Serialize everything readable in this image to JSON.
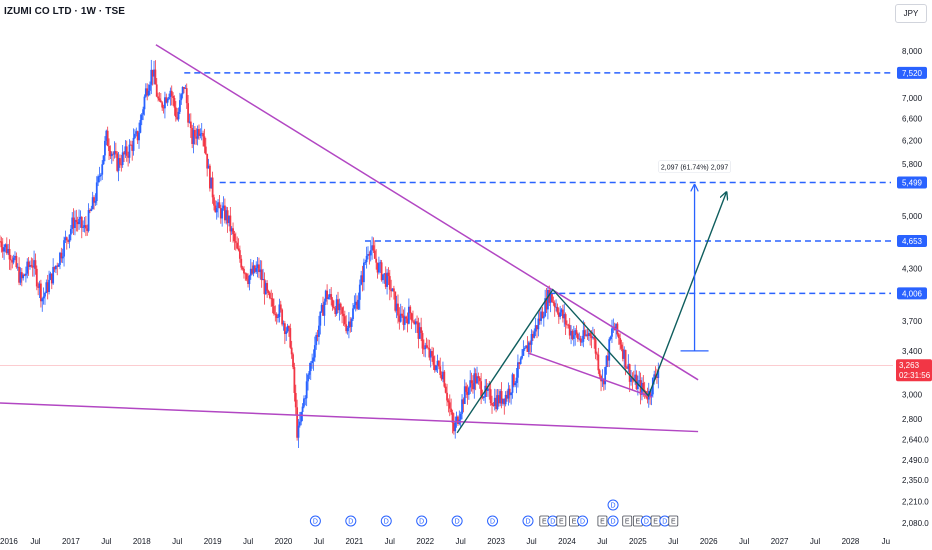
{
  "header": {
    "title": "IZUMI CO LTD · 1W · TSE",
    "currency": "JPY"
  },
  "colors": {
    "up": "#2962ff",
    "down": "#f23645",
    "trendline": "#b247c3",
    "level_line": "#2962ff",
    "measure": "#2962ff",
    "path": "#0f5e5e",
    "price_badge": "#f23645"
  },
  "chart_data": {
    "type": "candlestick",
    "title": "IZUMI CO LTD · 1W · TSE",
    "ylabel": "JPY",
    "y_scale": "log",
    "ylim": [
      2050,
      8500
    ],
    "xlim": [
      2016.0,
      2028.6
    ],
    "y_ticks": [
      {
        "label": "8,000",
        "value": 8000
      },
      {
        "label": "7,000",
        "value": 7000
      },
      {
        "label": "6,600",
        "value": 6600
      },
      {
        "label": "6,200",
        "value": 6200
      },
      {
        "label": "5,800",
        "value": 5800
      },
      {
        "label": "5,499",
        "value": 5499
      },
      {
        "label": "5,000",
        "value": 5000
      },
      {
        "label": "4,653",
        "value": 4653
      },
      {
        "label": "4,300",
        "value": 4300
      },
      {
        "label": "4,006",
        "value": 4006
      },
      {
        "label": "3,700",
        "value": 3700
      },
      {
        "label": "3,400",
        "value": 3400
      },
      {
        "label": "3,263",
        "value": 3263
      },
      {
        "label": "3,000",
        "value": 3000
      },
      {
        "label": "2,800",
        "value": 2800
      },
      {
        "label": "2,640.0",
        "value": 2640
      },
      {
        "label": "2,490.0",
        "value": 2490
      },
      {
        "label": "2,350.0",
        "value": 2350
      },
      {
        "label": "2,210.0",
        "value": 2210
      },
      {
        "label": "2,080.0",
        "value": 2080
      }
    ],
    "x_ticks": [
      {
        "label": "2016",
        "value": 2016.0
      },
      {
        "label": "Jul",
        "value": 2016.5
      },
      {
        "label": "2017",
        "value": 2017.0
      },
      {
        "label": "Jul",
        "value": 2017.5
      },
      {
        "label": "2018",
        "value": 2018.0
      },
      {
        "label": "Jul",
        "value": 2018.5
      },
      {
        "label": "2019",
        "value": 2019.0
      },
      {
        "label": "Jul",
        "value": 2019.5
      },
      {
        "label": "2020",
        "value": 2020.0
      },
      {
        "label": "Jul",
        "value": 2020.5
      },
      {
        "label": "2021",
        "value": 2021.0
      },
      {
        "label": "Jul",
        "value": 2021.5
      },
      {
        "label": "2022",
        "value": 2022.0
      },
      {
        "label": "Jul",
        "value": 2022.5
      },
      {
        "label": "2023",
        "value": 2023.0
      },
      {
        "label": "Jul",
        "value": 2023.5
      },
      {
        "label": "2024",
        "value": 2024.0
      },
      {
        "label": "Jul",
        "value": 2024.5
      },
      {
        "label": "2025",
        "value": 2025.0
      },
      {
        "label": "Jul",
        "value": 2025.5
      },
      {
        "label": "2026",
        "value": 2026.0
      },
      {
        "label": "Jul",
        "value": 2026.5
      },
      {
        "label": "2027",
        "value": 2027.0
      },
      {
        "label": "Jul",
        "value": 2027.5
      },
      {
        "label": "2028",
        "value": 2028.0
      },
      {
        "label": "Ju",
        "value": 2028.5
      }
    ],
    "price_path": [
      [
        2016.0,
        4650
      ],
      [
        2016.15,
        4500
      ],
      [
        2016.3,
        4150
      ],
      [
        2016.45,
        4400
      ],
      [
        2016.6,
        3950
      ],
      [
        2016.75,
        4250
      ],
      [
        2016.9,
        4600
      ],
      [
        2017.05,
        4950
      ],
      [
        2017.2,
        4800
      ],
      [
        2017.35,
        5300
      ],
      [
        2017.5,
        6250
      ],
      [
        2017.65,
        5800
      ],
      [
        2017.8,
        6000
      ],
      [
        2017.95,
        6300
      ],
      [
        2018.05,
        7100
      ],
      [
        2018.15,
        7600
      ],
      [
        2018.25,
        6800
      ],
      [
        2018.4,
        7200
      ],
      [
        2018.5,
        6600
      ],
      [
        2018.6,
        7300
      ],
      [
        2018.7,
        6200
      ],
      [
        2018.85,
        6500
      ],
      [
        2018.95,
        5600
      ],
      [
        2019.05,
        5100
      ],
      [
        2019.2,
        5000
      ],
      [
        2019.35,
        4500
      ],
      [
        2019.5,
        4200
      ],
      [
        2019.65,
        4300
      ],
      [
        2019.8,
        3900
      ],
      [
        2019.95,
        3800
      ],
      [
        2020.1,
        3500
      ],
      [
        2020.2,
        2650
      ],
      [
        2020.3,
        3000
      ],
      [
        2020.45,
        3500
      ],
      [
        2020.6,
        4000
      ],
      [
        2020.75,
        3850
      ],
      [
        2020.9,
        3650
      ],
      [
        2021.05,
        3950
      ],
      [
        2021.2,
        4600
      ],
      [
        2021.35,
        4300
      ],
      [
        2021.5,
        4100
      ],
      [
        2021.65,
        3700
      ],
      [
        2021.8,
        3800
      ],
      [
        2021.95,
        3500
      ],
      [
        2022.1,
        3300
      ],
      [
        2022.25,
        3200
      ],
      [
        2022.4,
        2700
      ],
      [
        2022.55,
        3000
      ],
      [
        2022.7,
        3150
      ],
      [
        2022.85,
        3000
      ],
      [
        2023.0,
        2950
      ],
      [
        2023.15,
        3000
      ],
      [
        2023.3,
        3200
      ],
      [
        2023.45,
        3450
      ],
      [
        2023.6,
        3700
      ],
      [
        2023.75,
        4000
      ],
      [
        2023.9,
        3800
      ],
      [
        2024.05,
        3600
      ],
      [
        2024.2,
        3500
      ],
      [
        2024.35,
        3600
      ],
      [
        2024.5,
        3100
      ],
      [
        2024.65,
        3650
      ],
      [
        2024.75,
        3500
      ],
      [
        2024.9,
        3150
      ],
      [
        2025.05,
        3050
      ],
      [
        2025.15,
        3000
      ],
      [
        2025.3,
        3263
      ]
    ],
    "horizontal_levels": [
      {
        "label": "7,520",
        "value": 7520,
        "x_start": 2018.6
      },
      {
        "label": "5,499",
        "value": 5499,
        "x_start": 2019.1
      },
      {
        "label": "4,653",
        "value": 4653,
        "x_start": 2021.15
      },
      {
        "label": "4,006",
        "value": 4006,
        "x_start": 2023.75
      }
    ],
    "current_price": {
      "label": "3,263",
      "value": 3263,
      "countdown": "02:31:56"
    },
    "trendlines": [
      {
        "from": [
          2018.2,
          8150
        ],
        "to": [
          2025.85,
          3130
        ]
      },
      {
        "from": [
          2016.0,
          2930
        ],
        "to": [
          2025.85,
          2700
        ]
      },
      {
        "from": [
          2023.45,
          3380
        ],
        "to": [
          2025.2,
          2980
        ]
      }
    ],
    "projection_path": [
      [
        2022.45,
        2690
      ],
      [
        2023.8,
        4050
      ],
      [
        2025.15,
        2990
      ],
      [
        2026.25,
        5350
      ]
    ],
    "measure": {
      "label": "2,097 (61.74%) 2,097",
      "x": 2025.8,
      "from": 3400,
      "to": 5497
    },
    "events": [
      {
        "label": "D",
        "x": 2020.45,
        "kind": "dividend"
      },
      {
        "label": "D",
        "x": 2020.95,
        "kind": "dividend"
      },
      {
        "label": "D",
        "x": 2021.45,
        "kind": "dividend"
      },
      {
        "label": "D",
        "x": 2021.95,
        "kind": "dividend"
      },
      {
        "label": "D",
        "x": 2022.45,
        "kind": "dividend"
      },
      {
        "label": "D",
        "x": 2022.95,
        "kind": "dividend"
      },
      {
        "label": "D",
        "x": 2023.45,
        "kind": "dividend"
      },
      {
        "label": "E",
        "x": 2023.68,
        "kind": "earnings"
      },
      {
        "label": "D",
        "x": 2023.8,
        "kind": "dividend"
      },
      {
        "label": "E",
        "x": 2023.92,
        "kind": "earnings"
      },
      {
        "label": "E",
        "x": 2024.1,
        "kind": "earnings"
      },
      {
        "label": "D",
        "x": 2024.22,
        "kind": "dividend"
      },
      {
        "label": "E",
        "x": 2024.5,
        "kind": "earnings"
      },
      {
        "label": "D",
        "x": 2024.65,
        "kind": "dividend"
      },
      {
        "label": "E",
        "x": 2024.85,
        "kind": "earnings"
      },
      {
        "label": "D",
        "x": 2024.65,
        "kind": "dividend",
        "row": 2
      },
      {
        "label": "E",
        "x": 2025.0,
        "kind": "earnings"
      },
      {
        "label": "D",
        "x": 2025.12,
        "kind": "dividend"
      },
      {
        "label": "E",
        "x": 2025.25,
        "kind": "earnings"
      },
      {
        "label": "D",
        "x": 2025.38,
        "kind": "dividend"
      },
      {
        "label": "E",
        "x": 2025.5,
        "kind": "earnings"
      }
    ]
  }
}
